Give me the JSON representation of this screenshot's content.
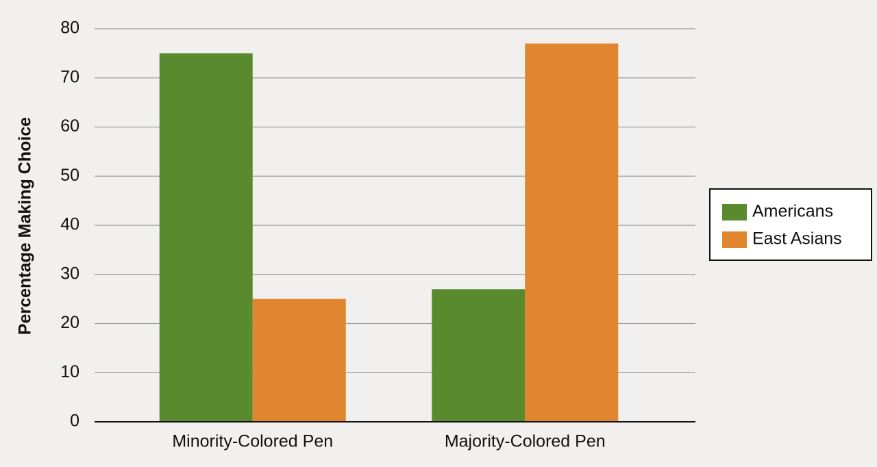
{
  "chart_data": {
    "type": "bar",
    "y_label": "Percentage Making Choice",
    "categories": [
      "Minority-Colored Pen",
      "Majority-Colored Pen"
    ],
    "series": [
      {
        "name": "Americans",
        "color": "#5a8a2e",
        "values": [
          75,
          27
        ]
      },
      {
        "name": "East Asians",
        "color": "#e0862e",
        "values": [
          25,
          77
        ]
      }
    ],
    "ylim": [
      0,
      80
    ],
    "yticks": [
      0,
      10,
      20,
      30,
      40,
      50,
      60,
      70,
      80
    ],
    "grid": true,
    "legend": "right"
  }
}
